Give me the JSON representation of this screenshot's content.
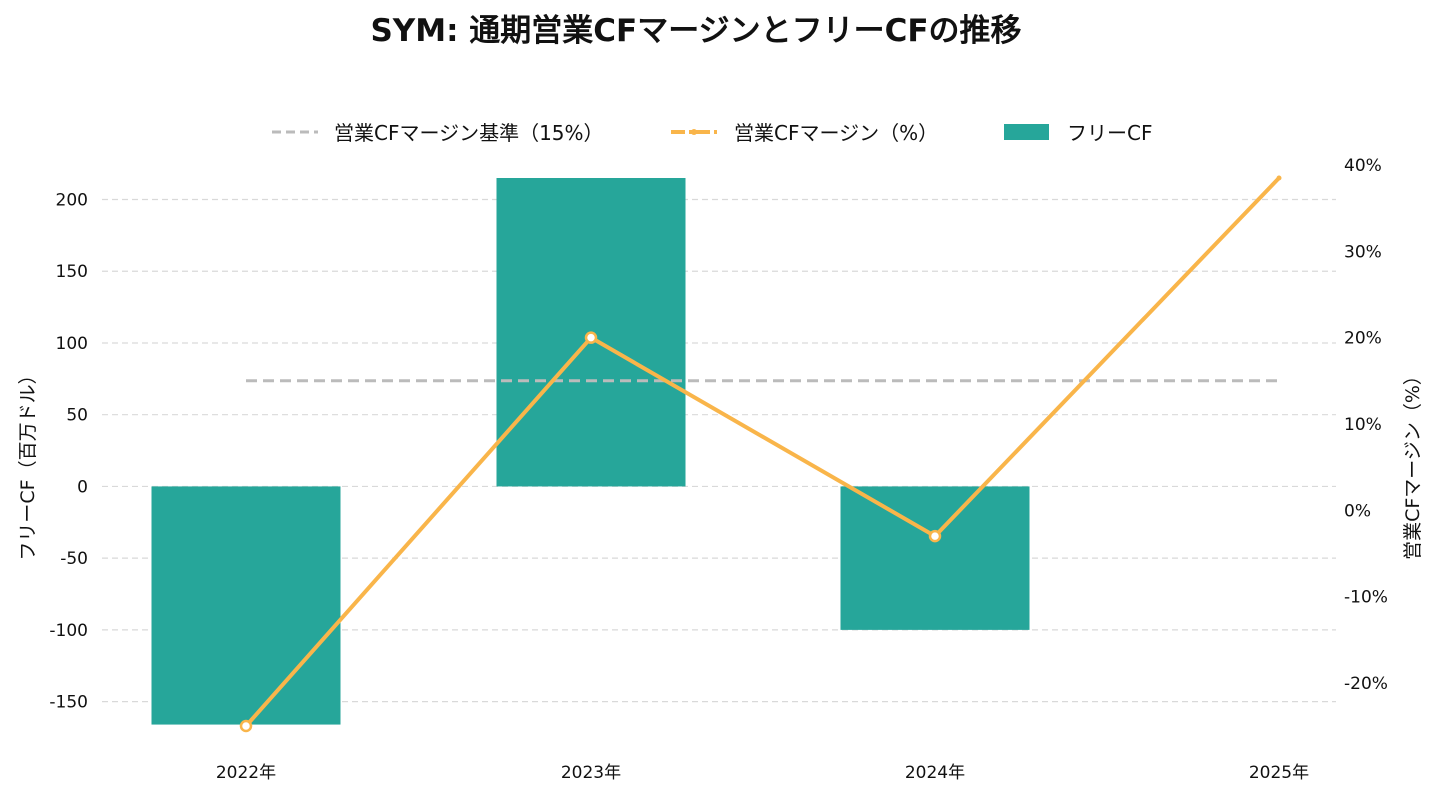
{
  "chart_data": {
    "type": "bar",
    "title": "SYM: 通期営業CFマージンとフリーCFの推移",
    "categories": [
      "2022年",
      "2023年",
      "2024年",
      "2025年"
    ],
    "ylabel_left": "フリーCF（百万ドル）",
    "ylabel_right": "営業CFマージン（%）",
    "ylim_left": [
      -167,
      215
    ],
    "yticks_left": [
      "200",
      "150",
      "100",
      "50",
      "0",
      "-50",
      "-100",
      "-150"
    ],
    "ylim_right": [
      -25,
      38.5
    ],
    "yticks_right": [
      "40%",
      "30%",
      "20%",
      "10%",
      "0%",
      "-10%",
      "-20%"
    ],
    "grid": true,
    "legend_position": "top-center",
    "series": [
      {
        "name": "フリーCF",
        "kind": "bar",
        "axis": "left",
        "color": "#26a69a",
        "values": [
          -166,
          215,
          -100,
          null
        ]
      },
      {
        "name": "営業CFマージン（%）",
        "kind": "line",
        "axis": "right",
        "color": "#f9b54a",
        "values": [
          -25,
          20,
          -3,
          38.5
        ]
      },
      {
        "name": "営業CFマージン基準（15%）",
        "kind": "reference-line",
        "axis": "right",
        "color": "#bbbbbb",
        "value": 15
      }
    ]
  }
}
